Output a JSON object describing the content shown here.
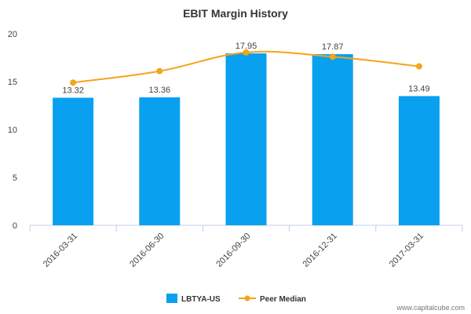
{
  "chart_data": {
    "type": "bar",
    "title": "EBIT Margin History",
    "categories": [
      "2016-03-31",
      "2016-06-30",
      "2016-09-30",
      "2016-12-31",
      "2017-03-31"
    ],
    "series": [
      {
        "name": "LBTYA-US",
        "type": "bar",
        "values": [
          13.32,
          13.36,
          17.95,
          17.87,
          13.49
        ],
        "color": "#0aa0f0",
        "data_labels": [
          "13.32",
          "13.36",
          "17.95",
          "17.87",
          "13.49"
        ]
      },
      {
        "name": "Peer Median",
        "type": "line",
        "values": [
          14.9,
          16.1,
          18.05,
          17.6,
          16.6
        ],
        "color": "#f5a31a"
      }
    ],
    "ylim": [
      0,
      20
    ],
    "yticks": [
      0,
      5,
      10,
      15,
      20
    ],
    "xlabel": "",
    "ylabel": "",
    "grid": false,
    "legend_position": "bottom-center"
  },
  "credit": "www.capitalcube.com"
}
